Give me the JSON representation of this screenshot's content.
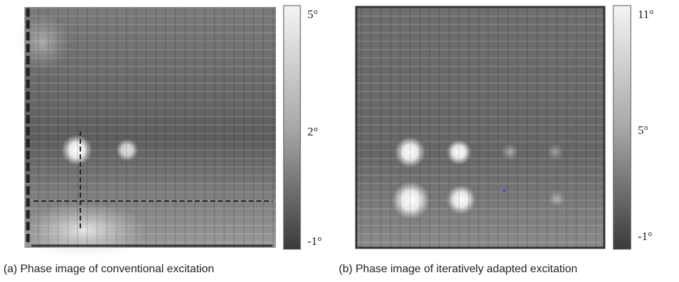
{
  "panels": [
    {
      "caption": "(a) Phase image of conventional excitation",
      "colorbar": {
        "labels": [
          "5°",
          "2°",
          "-1°"
        ]
      }
    },
    {
      "caption": "(b) Phase image of iteratively adapted excitation",
      "colorbar": {
        "labels": [
          "11°",
          "5°",
          "-1°"
        ]
      }
    }
  ]
}
